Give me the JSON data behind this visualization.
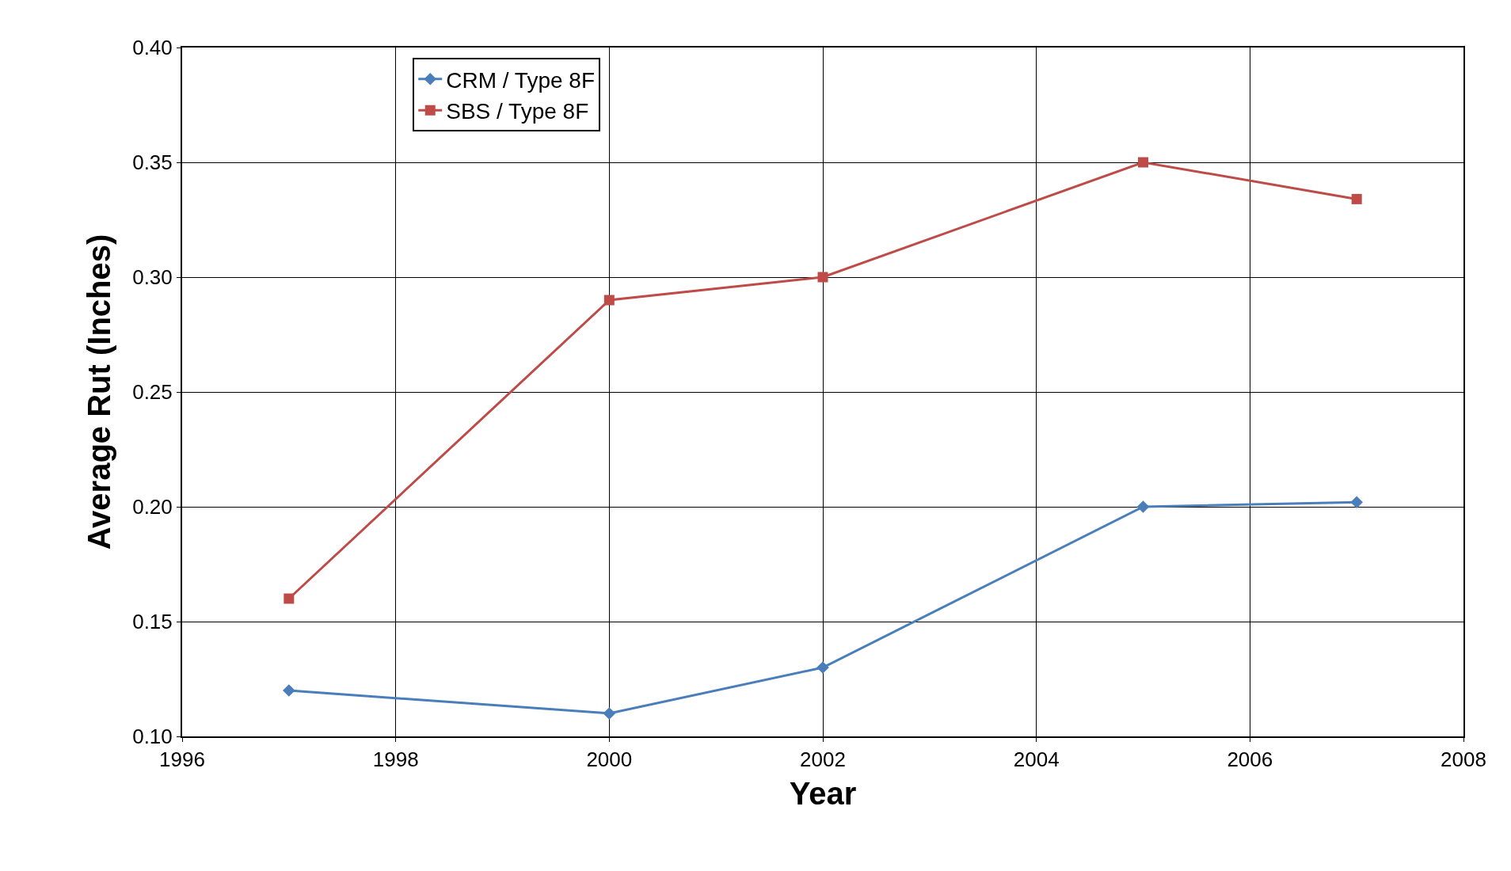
{
  "chart_data": {
    "type": "line",
    "xlabel": "Year",
    "ylabel": "Average Rut (Inches)",
    "x": [
      1997,
      2000,
      2002,
      2005,
      2007
    ],
    "series": [
      {
        "name": "CRM / Type 8F",
        "color": "#4a7ebb",
        "marker": "diamond",
        "values": [
          0.12,
          0.11,
          0.13,
          0.2,
          0.202
        ]
      },
      {
        "name": "SBS / Type 8F",
        "color": "#be4b48",
        "marker": "square",
        "values": [
          0.16,
          0.29,
          0.3,
          0.35,
          0.334
        ]
      }
    ],
    "xlim": [
      1996,
      2008
    ],
    "xticks": [
      1996,
      1998,
      2000,
      2002,
      2004,
      2006,
      2008
    ],
    "ylim": [
      0.1,
      0.4
    ],
    "yticks": [
      {
        "value": 0.1,
        "label": "0.10"
      },
      {
        "value": 0.15,
        "label": "0.15"
      },
      {
        "value": 0.2,
        "label": "0.20"
      },
      {
        "value": 0.25,
        "label": "0.25"
      },
      {
        "value": 0.3,
        "label": "0.30"
      },
      {
        "value": 0.35,
        "label": "0.35"
      },
      {
        "value": 0.4,
        "label": "0.40"
      }
    ],
    "grid": true,
    "legend": "top left",
    "line_style": "solid"
  }
}
